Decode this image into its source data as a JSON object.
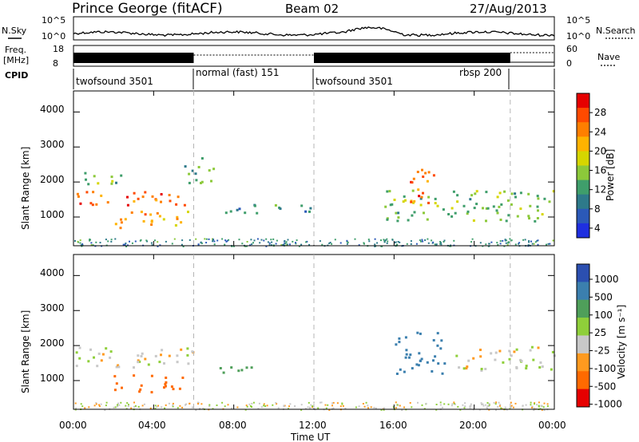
{
  "header": {
    "station": "Prince George (fitACF)",
    "beam": "Beam 02",
    "date": "27/Aug/2013"
  },
  "strips": {
    "nsky": {
      "label": "N.Sky",
      "left_ticks": [
        "10^5",
        "10^0"
      ],
      "right_ticks": [
        "10^5",
        "10^0"
      ],
      "right_label": "N.Search"
    },
    "freq": {
      "label_1": "Freq.",
      "label_2": "[MHz]",
      "left_ticks": [
        "18",
        "8"
      ],
      "right_ticks": [
        "60",
        "0"
      ],
      "right_label": "Nave"
    },
    "cpid": {
      "label": "CPID",
      "segments": [
        {
          "start_h": 0.0,
          "end_h": 6.0,
          "text": "twofsound 3501"
        },
        {
          "start_h": 6.0,
          "end_h": 12.0,
          "text": "normal (fast) 151"
        },
        {
          "start_h": 12.0,
          "end_h": 21.8,
          "text": "twofsound 3501"
        },
        {
          "start_h": 18.0,
          "end_h": 21.8,
          "text": "rbsp 200"
        }
      ]
    }
  },
  "colorbars": {
    "power": {
      "label": "Power [dB]",
      "ticks": [
        "28",
        "24",
        "20",
        "16",
        "12",
        "8",
        "4"
      ],
      "colors": [
        "#e60000",
        "#ff4a00",
        "#ff7f00",
        "#ffb300",
        "#d6d600",
        "#8cc93a",
        "#3f9e6b",
        "#2e7a8a",
        "#2b59b8",
        "#1f2fe0"
      ]
    },
    "velocity": {
      "label": "Velocity [m s⁻¹]",
      "ticks": [
        "1000",
        "500",
        "100",
        "25",
        "-25",
        "-100",
        "-500",
        "-1000"
      ],
      "colors": [
        "#2b4fb0",
        "#3b7fae",
        "#4f9f5a",
        "#8fcf3a",
        "#c8c8c8",
        "#ff9a1f",
        "#ff6a00",
        "#e60000"
      ]
    }
  },
  "chart_data": {
    "type": "heatmap",
    "x_axis": {
      "label": "Time UT",
      "range_h": [
        0,
        24
      ],
      "tick_labels": [
        "00:00",
        "04:00",
        "08:00",
        "12:00",
        "16:00",
        "20:00",
        "00:00"
      ]
    },
    "y_axis": {
      "label": "Slant Range [km]",
      "range_km": [
        180,
        4600
      ],
      "tick_labels": [
        "1000",
        "2000",
        "3000",
        "4000"
      ]
    },
    "mode_change_times_h": [
      6.0,
      12.0,
      21.8
    ],
    "power_features": [
      {
        "start_h": 0.0,
        "end_h": 6.0,
        "range_km": [
          1350,
          1750
        ],
        "power_db": 26
      },
      {
        "start_h": 2.0,
        "end_h": 5.8,
        "range_km": [
          700,
          1200
        ],
        "power_db": 22
      },
      {
        "start_h": 0.0,
        "end_h": 2.5,
        "range_km": [
          1950,
          2300
        ],
        "power_db": 14
      },
      {
        "start_h": 5.5,
        "end_h": 7.0,
        "range_km": [
          2000,
          2800
        ],
        "power_db": 12
      },
      {
        "start_h": 7.0,
        "end_h": 9.5,
        "range_km": [
          1100,
          1400
        ],
        "power_db": 10
      },
      {
        "start_h": 10.0,
        "end_h": 12.0,
        "range_km": [
          1100,
          1400
        ],
        "power_db": 10
      },
      {
        "start_h": 15.5,
        "end_h": 24.0,
        "range_km": [
          900,
          1800
        ],
        "power_db": 14
      },
      {
        "start_h": 16.5,
        "end_h": 18.0,
        "range_km": [
          1300,
          2400
        ],
        "power_db": 26
      }
    ],
    "velocity_features": [
      {
        "start_h": 2.0,
        "end_h": 5.5,
        "range_km": [
          700,
          1200
        ],
        "velocity_ms": -300
      },
      {
        "start_h": 0.0,
        "end_h": 6.0,
        "range_km": [
          1400,
          2000
        ],
        "velocity_ms": 0
      },
      {
        "start_h": 7.0,
        "end_h": 9.5,
        "range_km": [
          1200,
          1450
        ],
        "velocity_ms": 150
      },
      {
        "start_h": 16.0,
        "end_h": 18.5,
        "range_km": [
          1200,
          2400
        ],
        "velocity_ms": 600
      },
      {
        "start_h": 19.0,
        "end_h": 24.0,
        "range_km": [
          1300,
          2000
        ],
        "velocity_ms": 0
      }
    ]
  }
}
